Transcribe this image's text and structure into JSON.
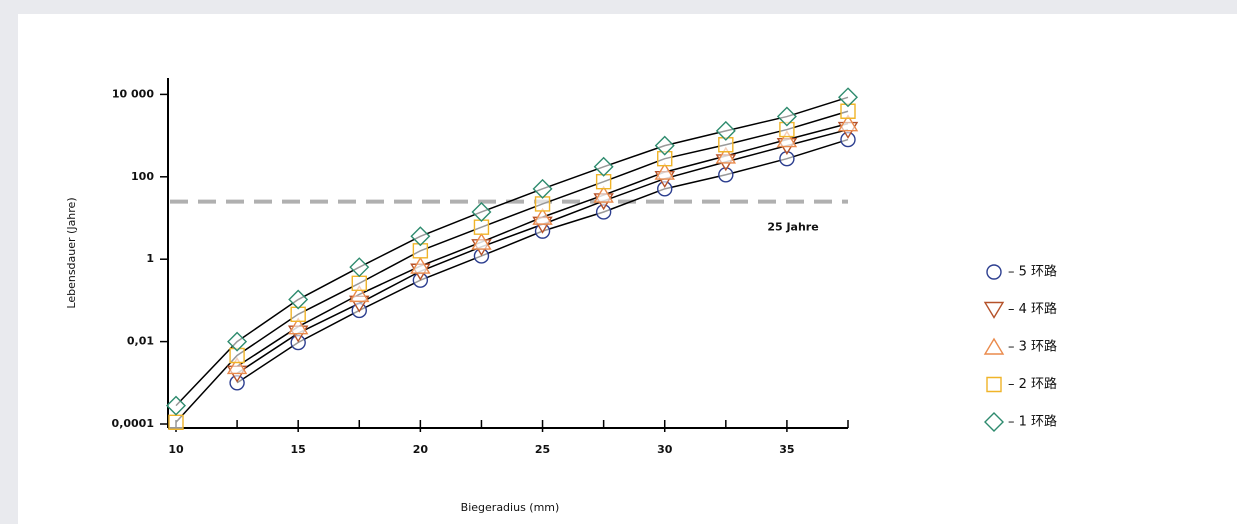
{
  "chart_data": {
    "type": "line",
    "x_label": "Biegeradius (mm)",
    "y_label": "Lebensdauer (Jahre)",
    "x": [
      10,
      12.5,
      15,
      17.5,
      20,
      22.5,
      25,
      27.5,
      30,
      32.5,
      35,
      37.5
    ],
    "series": [
      {
        "name": "– 5 环路",
        "color": "#2c3e8f",
        "marker": "circle",
        "values": [
          null,
          0.001,
          0.0095,
          0.057,
          0.31,
          1.2,
          4.8,
          14,
          51,
          112,
          275,
          800
        ]
      },
      {
        "name": "– 4 环路",
        "color": "#b5522a",
        "marker": "triangle-down",
        "values": [
          null,
          0.0017,
          0.016,
          0.085,
          0.51,
          2,
          7,
          26,
          90,
          230,
          570,
          1400
        ]
      },
      {
        "name": "– 3 环路",
        "color": "#ea8a4c",
        "marker": "triangle-up",
        "values": [
          null,
          0.0025,
          0.023,
          0.14,
          0.68,
          2.6,
          10.5,
          36,
          130,
          320,
          800,
          1950
        ]
      },
      {
        "name": "– 2 环路",
        "color": "#f0b429",
        "marker": "square",
        "values": [
          0.00011,
          0.0046,
          0.046,
          0.26,
          1.6,
          6,
          22,
          76,
          275,
          600,
          1400,
          3900
        ]
      },
      {
        "name": "– 1 环路",
        "color": "#2e8b6e",
        "marker": "diamond",
        "values": [
          0.00028,
          0.01,
          0.105,
          0.64,
          3.6,
          14,
          51,
          175,
          570,
          1300,
          2900,
          8500
        ]
      }
    ],
    "line_color": "#000000",
    "xlim": [
      10,
      37.5
    ],
    "xticks": [
      10,
      15,
      20,
      25,
      30,
      35
    ],
    "minor_xticks": [
      12.5,
      17.5,
      22.5,
      27.5,
      32.5,
      37.5
    ],
    "ylim": [
      8e-05,
      25000
    ],
    "y_scale": "log",
    "yticks": [
      {
        "value": 0.0001,
        "label": "0,0001"
      },
      {
        "value": 0.01,
        "label": "0,01"
      },
      1,
      100,
      {
        "value": 10000,
        "label": "10 000"
      }
    ],
    "reference_line": {
      "value": 25,
      "label": "25 Jahre",
      "color": "#b0b0b0"
    },
    "legend": "right"
  }
}
